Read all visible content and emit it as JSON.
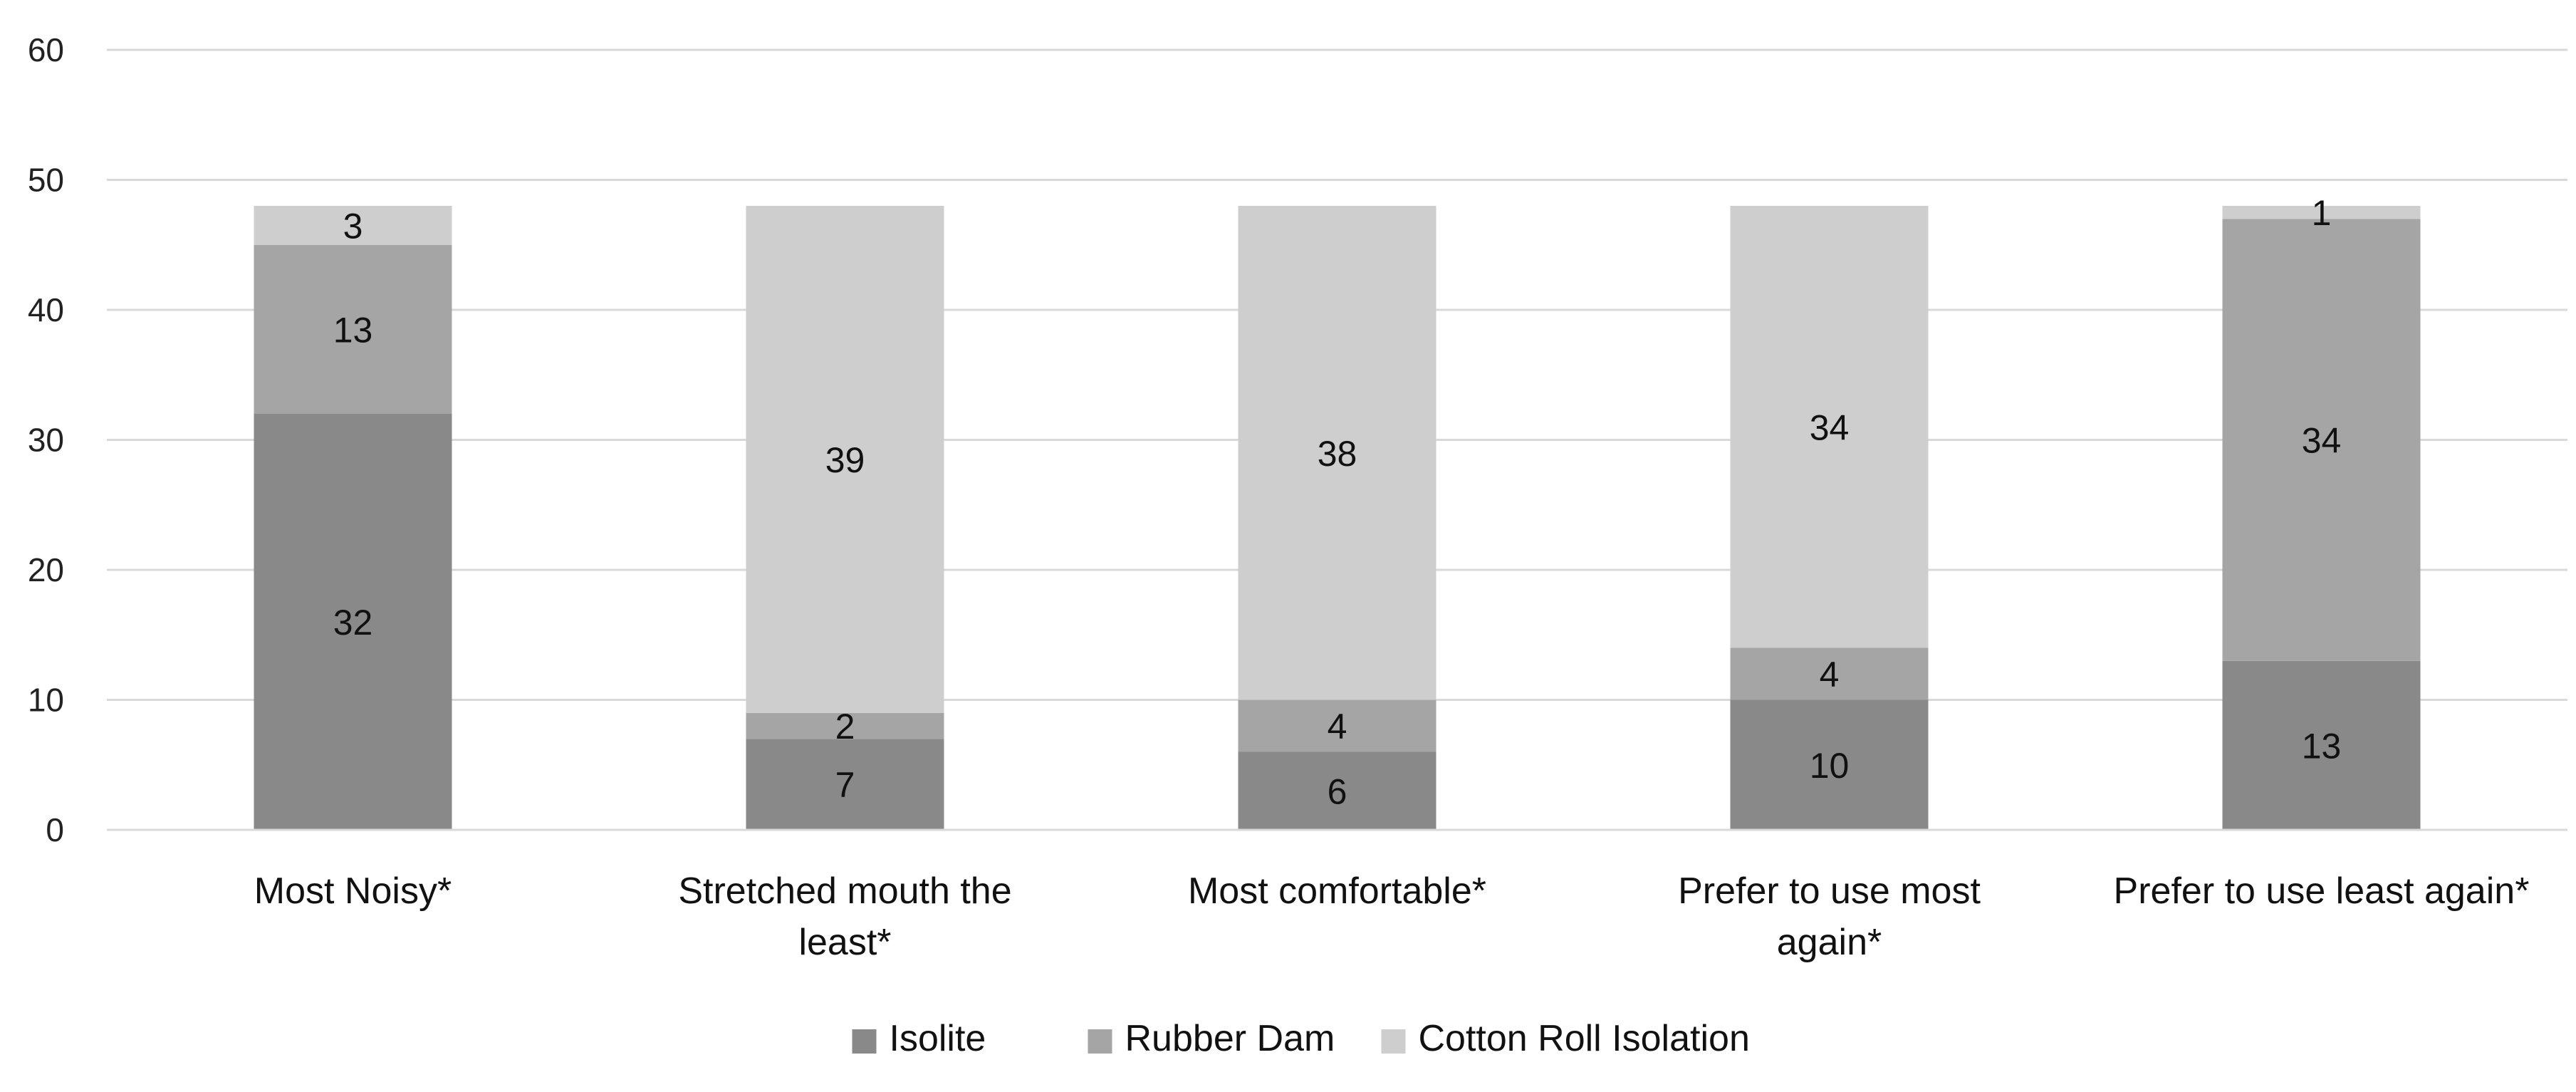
{
  "chart_data": {
    "type": "bar",
    "stacked": true,
    "categories": [
      [
        "Most Noisy*"
      ],
      [
        "Stretched mouth the",
        "least*"
      ],
      [
        "Most comfortable*"
      ],
      [
        "Prefer to use most",
        "again*"
      ],
      [
        "Prefer to use least again*"
      ]
    ],
    "series": [
      {
        "name": "Isolite",
        "color": "#898989",
        "values": [
          32,
          7,
          6,
          10,
          13
        ]
      },
      {
        "name": "Rubber Dam",
        "color": "#a5a5a5",
        "values": [
          13,
          2,
          4,
          4,
          34
        ]
      },
      {
        "name": "Cotton Roll Isolation",
        "color": "#cecece",
        "values": [
          3,
          39,
          38,
          34,
          1
        ]
      }
    ],
    "ylim": [
      0,
      60
    ],
    "yticks": [
      0,
      10,
      20,
      30,
      40,
      50,
      60
    ],
    "grid": true,
    "legend": "bottom",
    "title": "",
    "xlabel": "",
    "ylabel": ""
  }
}
